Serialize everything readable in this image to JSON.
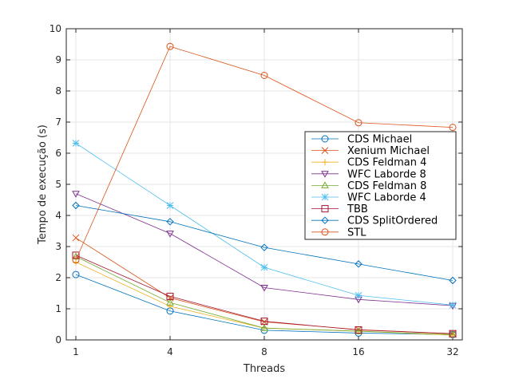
{
  "chart_data": {
    "type": "line",
    "xlabel": "Threads",
    "ylabel": "Tempo de execução (s)",
    "categories": [
      "1",
      "4",
      "8",
      "16",
      "32"
    ],
    "ylim": [
      0,
      10
    ],
    "yticks": [
      0,
      1,
      2,
      3,
      4,
      5,
      6,
      7,
      8,
      9,
      10
    ],
    "grid": true,
    "legend_position": "right",
    "series": [
      {
        "name": "CDS Michael",
        "color": "#0072bd",
        "marker": "circle",
        "values": [
          2.1,
          0.93,
          0.31,
          0.22,
          0.17
        ]
      },
      {
        "name": "Xenium Michael",
        "color": "#d95319",
        "marker": "x",
        "values": [
          3.28,
          1.35,
          0.58,
          0.33,
          0.2
        ]
      },
      {
        "name": "CDS Feldman 4",
        "color": "#edb120",
        "marker": "plus",
        "values": [
          2.5,
          1.08,
          0.38,
          0.28,
          0.15
        ]
      },
      {
        "name": "WFC Laborde 8",
        "color": "#7e2f8e",
        "marker": "triangle-down",
        "values": [
          4.7,
          3.42,
          1.68,
          1.3,
          1.1
        ]
      },
      {
        "name": "CDS Feldman 8",
        "color": "#77ac30",
        "marker": "triangle-up",
        "values": [
          2.68,
          1.2,
          0.38,
          0.28,
          0.17
        ]
      },
      {
        "name": "WFC Laborde 4",
        "color": "#4dbeee",
        "marker": "asterisk",
        "values": [
          6.32,
          4.32,
          2.33,
          1.43,
          1.12
        ]
      },
      {
        "name": "TBB",
        "color": "#a2142f",
        "marker": "square",
        "values": [
          2.72,
          1.4,
          0.6,
          0.32,
          0.2
        ]
      },
      {
        "name": "CDS SplitOrdered",
        "color": "#0072bd",
        "marker": "diamond",
        "values": [
          4.32,
          3.8,
          2.97,
          2.44,
          1.91
        ]
      },
      {
        "name": "STL",
        "color": "#d95319",
        "marker": "circle",
        "values": [
          2.57,
          9.43,
          8.5,
          6.98,
          6.83
        ]
      }
    ]
  }
}
